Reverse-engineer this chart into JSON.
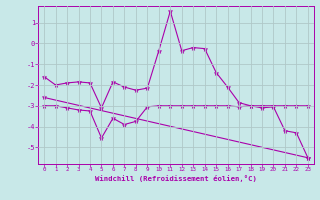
{
  "x": [
    0,
    1,
    2,
    3,
    4,
    5,
    6,
    7,
    8,
    9,
    10,
    11,
    12,
    13,
    14,
    15,
    16,
    17,
    18,
    19,
    20,
    21,
    22,
    23
  ],
  "line1": [
    -1.6,
    -2.0,
    -1.9,
    -1.85,
    -1.9,
    -3.1,
    -1.85,
    -2.1,
    -2.25,
    -2.15,
    -0.35,
    1.55,
    -0.35,
    -0.2,
    -0.25,
    -1.4,
    -2.1,
    -2.85,
    -3.0,
    -3.1,
    -3.05,
    -4.2,
    -4.3,
    -5.5
  ],
  "line2": [
    -3.0,
    -3.0,
    -3.1,
    -3.2,
    -3.25,
    -4.55,
    -3.6,
    -3.9,
    -3.75,
    -3.05,
    -3.0,
    -3.0,
    -3.0,
    -3.0,
    -3.0,
    -3.0,
    -3.0,
    -3.05,
    -3.0,
    -3.0,
    -3.0,
    -3.0,
    -3.0,
    -3.0
  ],
  "line3_x": [
    0,
    23
  ],
  "line3_y": [
    -2.6,
    -5.5
  ],
  "background_color": "#c8e8e8",
  "line_color": "#aa00aa",
  "grid_color": "#b0c8c8",
  "ylabel_ticks": [
    1,
    0,
    -1,
    -2,
    -3,
    -4,
    -5
  ],
  "xlabel_ticks": [
    0,
    1,
    2,
    3,
    4,
    5,
    6,
    7,
    8,
    9,
    10,
    11,
    12,
    13,
    14,
    15,
    16,
    17,
    18,
    19,
    20,
    21,
    22,
    23
  ],
  "xlabel": "Windchill (Refroidissement éolien,°C)",
  "xlim": [
    -0.5,
    23.5
  ],
  "ylim": [
    -5.8,
    1.8
  ]
}
